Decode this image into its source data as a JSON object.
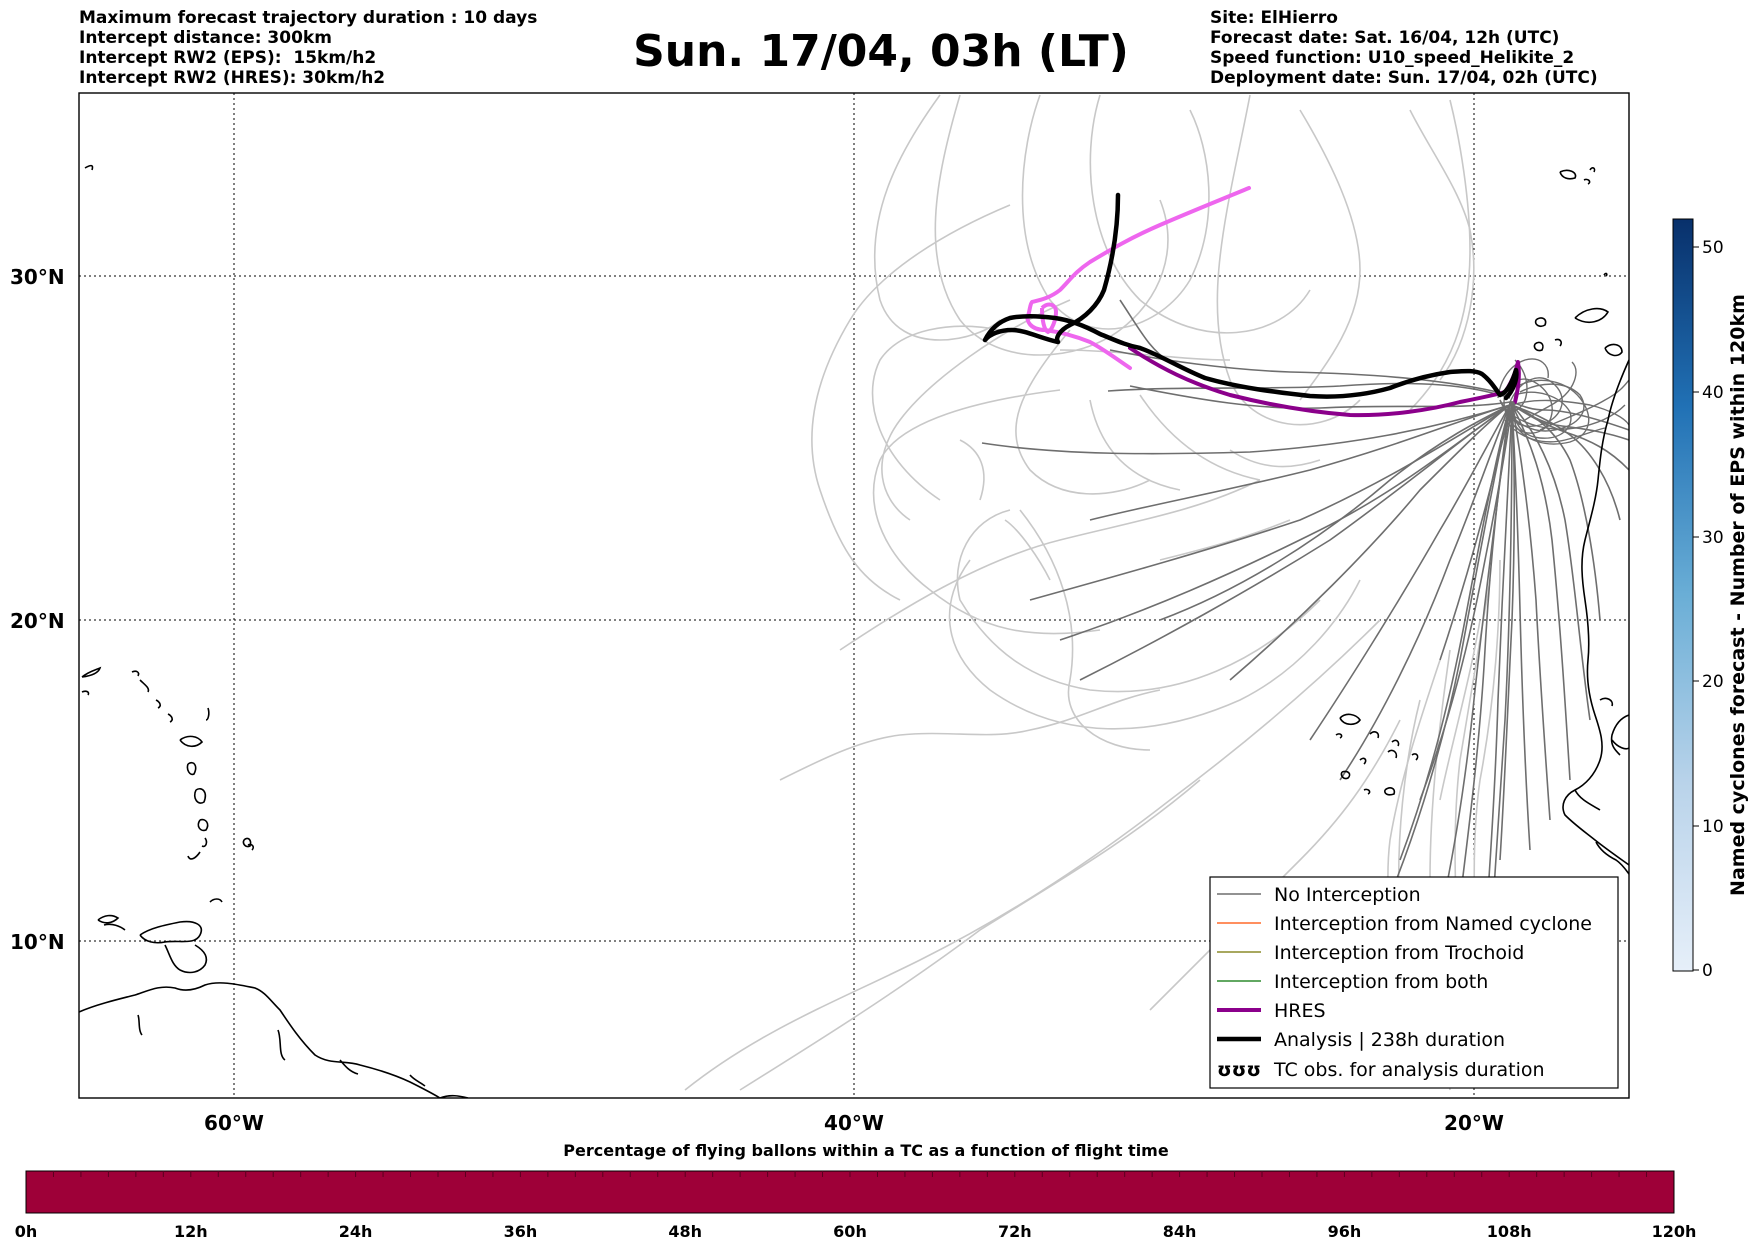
{
  "header_left": {
    "line1": "Maximum forecast trajectory duration : 10 days",
    "line2": "Intercept distance: 300km",
    "line3": "Intercept RW2 (EPS):  15km/h2",
    "line4": "Intercept RW2 (HRES): 30km/h2"
  },
  "title": "Sun. 17/04, 03h (LT)",
  "header_right": {
    "line1": "Site: ElHierro",
    "line2": "Forecast date: Sat. 16/04, 12h (UTC)",
    "line3": "Speed function: U10_speed_Helikite_2",
    "line4": "Deployment date: Sun. 17/04, 02h (UTC)"
  },
  "map": {
    "lat_labels": [
      "30°N",
      "20°N",
      "10°N"
    ],
    "lon_labels": [
      "60°W",
      "40°W",
      "20°W"
    ],
    "colors": {
      "no_interception": "#6e6e6e",
      "light_track": "#c8c8c8",
      "named_cyclone": "#ff6a2a",
      "trochoid": "#8c8c2a",
      "both": "#2e8b2e",
      "hres": "#8b008b",
      "analysis": "#000000",
      "pink_track": "#ee66ee"
    }
  },
  "legend": {
    "items": [
      {
        "label": "No Interception",
        "icon": "thin-gray-line"
      },
      {
        "label": "Interception from Named cyclone",
        "icon": "thin-orange-line"
      },
      {
        "label": "Interception from Trochoid",
        "icon": "thin-olive-line"
      },
      {
        "label": "Interception from both",
        "icon": "thin-green-line"
      },
      {
        "label": "HRES",
        "icon": "thick-purple-line"
      },
      {
        "label": "Analysis | 238h duration",
        "icon": "thick-black-line"
      },
      {
        "label": "TC obs. for analysis duration",
        "icon": "cyclone-symbols",
        "symbol": "ʊʊʊ"
      }
    ]
  },
  "colorbar": {
    "label": "Named cyclones forecast - Number of EPS within 120km",
    "ticks": [
      "50",
      "40",
      "30",
      "20",
      "10",
      "0"
    ]
  },
  "percentage_bar": {
    "title": "Percentage of flying ballons within a TC as a function of flight time",
    "color": "#9e0038",
    "ticks": [
      "0h",
      "12h",
      "24h",
      "36h",
      "48h",
      "60h",
      "72h",
      "84h",
      "96h",
      "108h",
      "120h"
    ]
  }
}
